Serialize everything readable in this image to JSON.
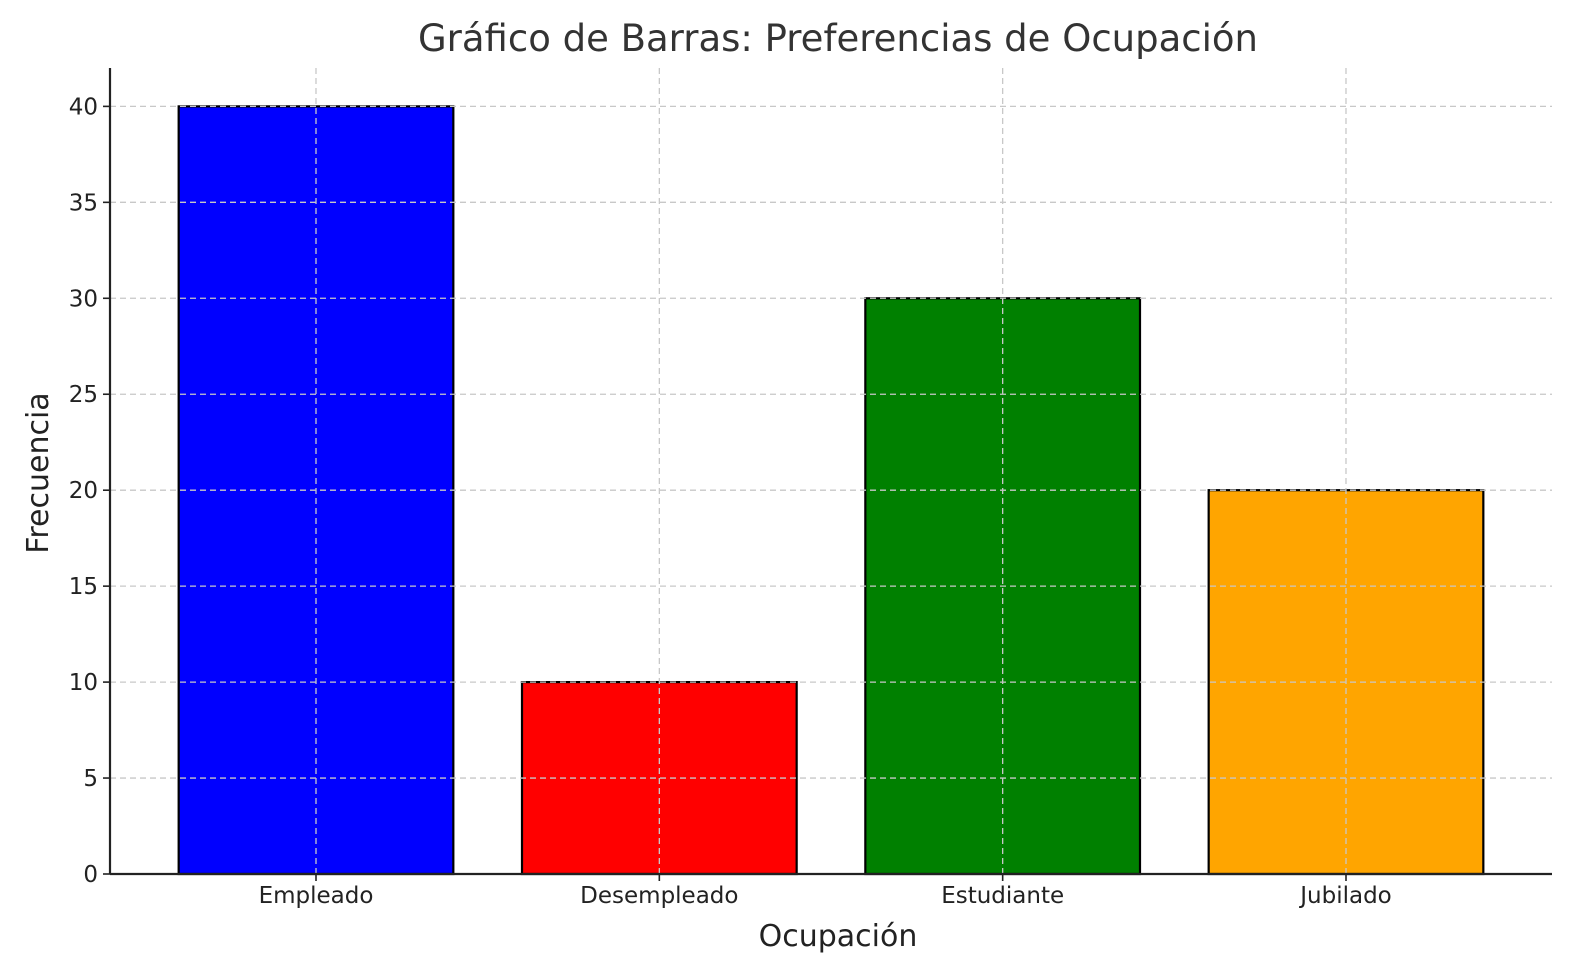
{
  "chart_data": {
    "type": "bar",
    "title": "Gráfico de Barras: Preferencias de Ocupación",
    "xlabel": "Ocupación",
    "ylabel": "Frecuencia",
    "categories": [
      "Empleado",
      "Desempleado",
      "Estudiante",
      "Jubilado"
    ],
    "values": [
      40,
      10,
      30,
      20
    ],
    "bar_colors": [
      "#0000ff",
      "#ff0000",
      "#008000",
      "#ffa500"
    ],
    "edge_color": "#000000",
    "ylim": [
      0,
      42
    ],
    "yticks": [
      0,
      5,
      10,
      15,
      20,
      25,
      30,
      35,
      40
    ],
    "grid": true,
    "grid_style": "dashed",
    "grid_color": "#c8c8c8",
    "legend": "none"
  }
}
